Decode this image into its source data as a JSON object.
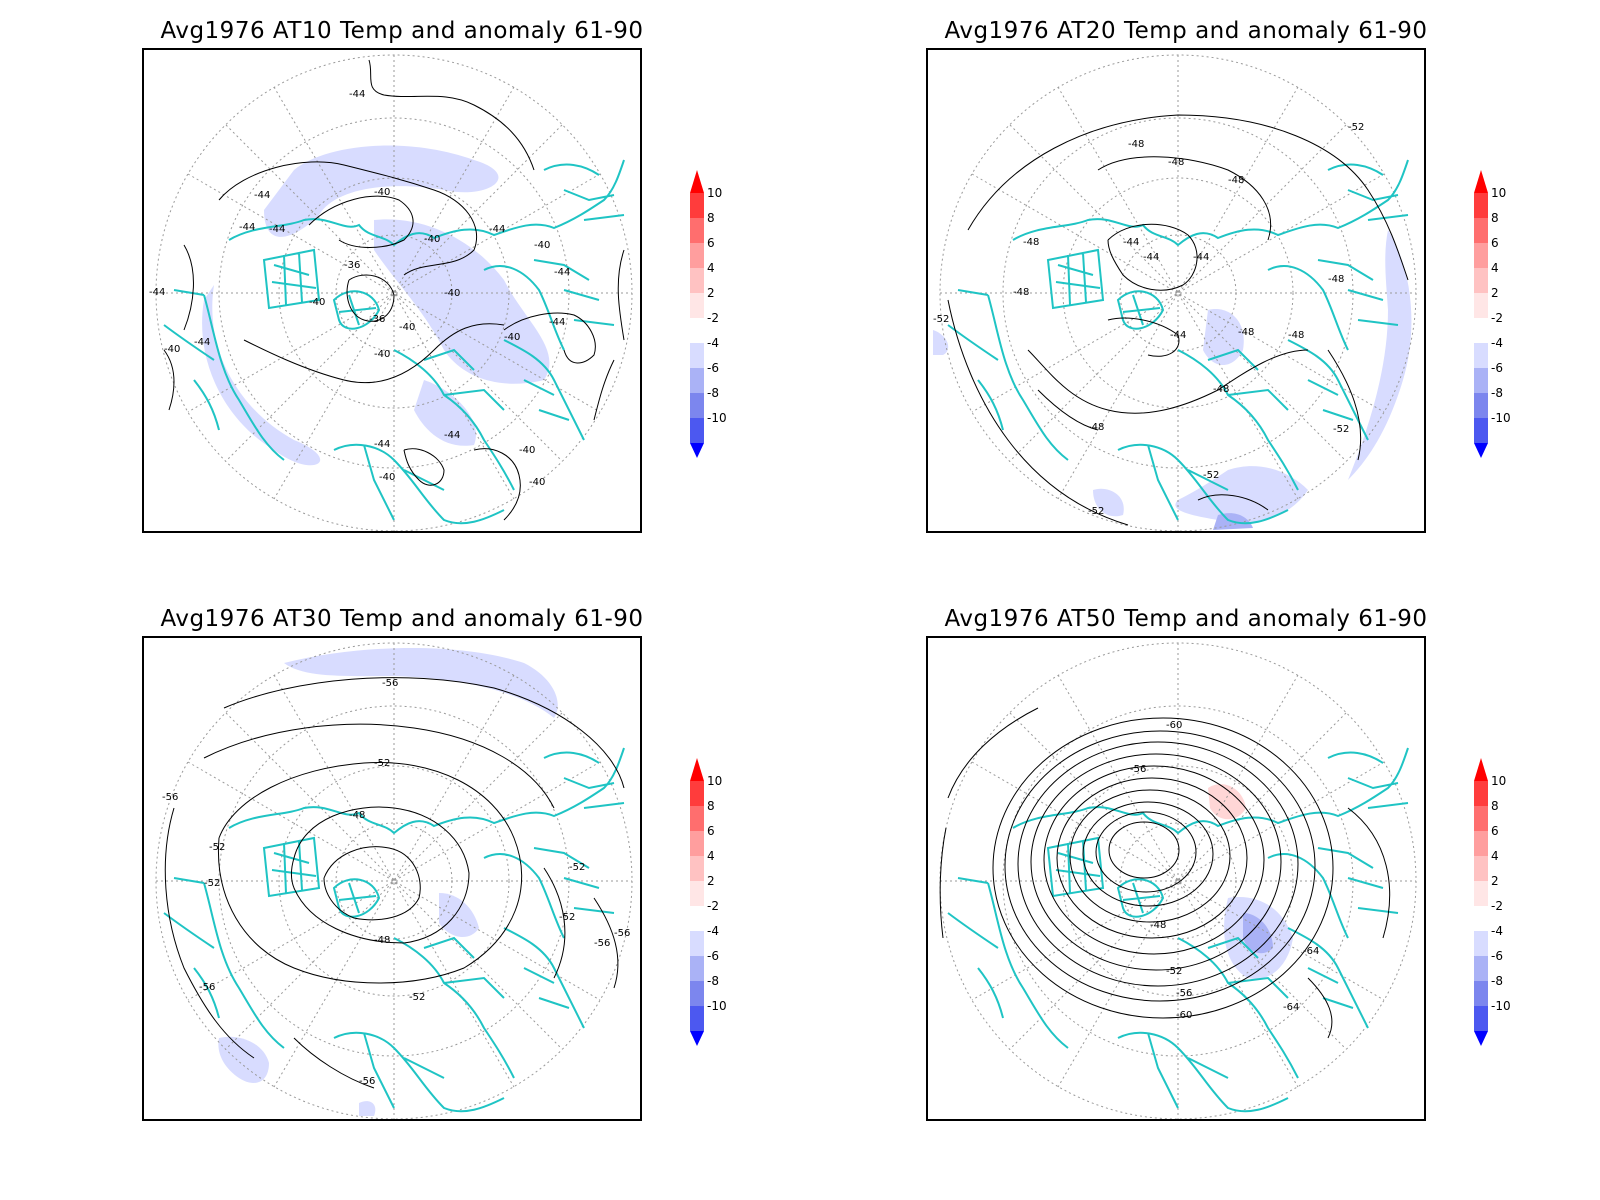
{
  "colors": {
    "coast": "#1fc4c4",
    "contour": "#000000",
    "anomaly_neg_light": "#d8dcff",
    "anomaly_neg_mid": "#a8b0f5",
    "anomaly_pos_light": "#ffd6d6",
    "frame": "#000000"
  },
  "colorbar": {
    "ticks": [
      "10",
      "8",
      "6",
      "4",
      "2",
      "-2",
      "-4",
      "-6",
      "-8",
      "-10"
    ],
    "colors": [
      "#ff0000",
      "#ff3c3c",
      "#ff6e6e",
      "#ff9e9e",
      "#ffd6d6",
      "#ffffff",
      "#d8dcff",
      "#aab2f6",
      "#7c86ee",
      "#4c58f0",
      "#1f2ff5",
      "#0000ff"
    ]
  },
  "panels": [
    {
      "title": "Avg1976 AT10 Temp and anomaly 61-90",
      "contour_labels": [
        "-44",
        "-44",
        "-40",
        "-44",
        "-44",
        "-40",
        "-40",
        "-44",
        "-40",
        "-36",
        "-40",
        "-36",
        "-40",
        "-44",
        "-44",
        "-40",
        "-44",
        "-40",
        "-40",
        "-44",
        "-44",
        "-44",
        "-40",
        "-40",
        "-40"
      ]
    },
    {
      "title": "Avg1976 AT20 Temp and anomaly 61-90",
      "contour_labels": [
        "-52",
        "-48",
        "-48",
        "-48",
        "-48",
        "-44",
        "-44",
        "-44",
        "-48",
        "-48",
        "-52",
        "-44",
        "-48",
        "-48",
        "-48",
        "-48",
        "-52",
        "-52",
        "-52"
      ]
    },
    {
      "title": "Avg1976 AT30 Temp and anomaly 61-90",
      "contour_labels": [
        "-56",
        "-52",
        "-56",
        "-48",
        "-52",
        "-52",
        "-52",
        "-52",
        "-48",
        "-56",
        "-56",
        "-52",
        "-56",
        "-56"
      ]
    },
    {
      "title": "Avg1976 AT50 Temp and anomaly 61-90",
      "contour_labels": [
        "-60",
        "-56",
        "-48",
        "-52",
        "-56",
        "-60",
        "-64",
        "-64"
      ]
    }
  ]
}
